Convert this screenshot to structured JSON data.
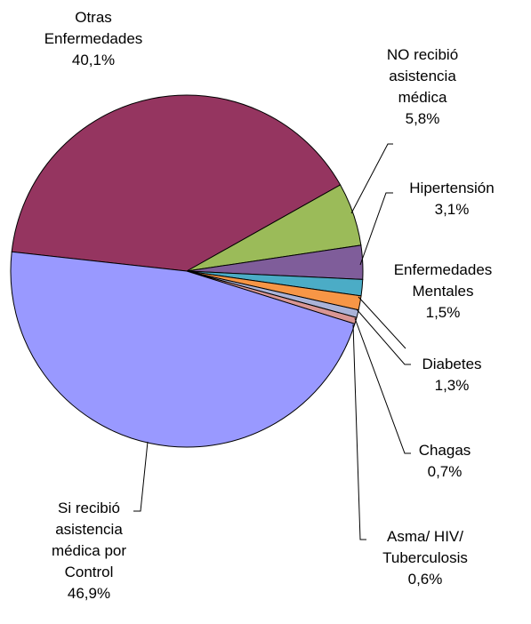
{
  "chart_data": {
    "type": "pie",
    "categories": [
      "Otras Enfermedades",
      "NO recibió asistencia médica",
      "Hipertensión",
      "Enfermedades Mentales",
      "Diabetes",
      "Chagas",
      "Asma/ HIV/ Tuberculosis",
      "Si recibió asistencia médica por Control"
    ],
    "values": [
      40.1,
      5.8,
      3.1,
      1.5,
      1.3,
      0.7,
      0.6,
      46.9
    ],
    "value_labels": [
      "40,1%",
      "5,8%",
      "3,1%",
      "1,5%",
      "1,3%",
      "0,7%",
      "0,6%",
      "46,9%"
    ],
    "colors": [
      "#953560",
      "#9bbb59",
      "#7f5d9a",
      "#4bacc6",
      "#f79646",
      "#aab3d8",
      "#d99694",
      "#9999ff"
    ]
  }
}
